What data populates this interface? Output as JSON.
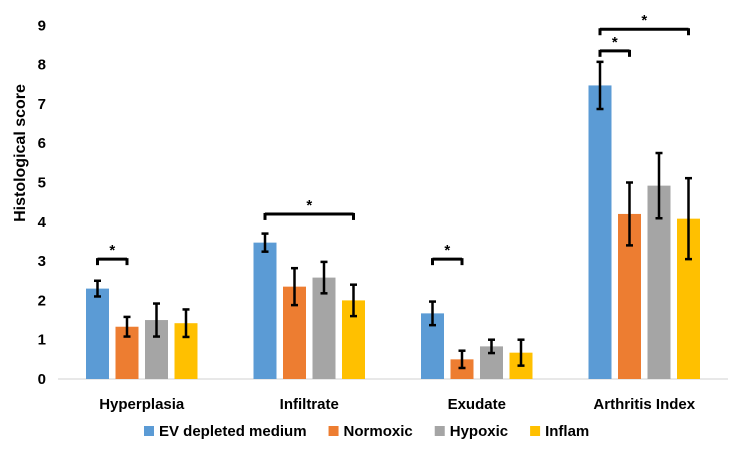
{
  "chart_data": {
    "type": "bar",
    "title": "",
    "xlabel": "",
    "ylabel": "Histological score",
    "ylim": [
      0,
      9
    ],
    "yticks": [
      0,
      1,
      2,
      3,
      4,
      5,
      6,
      7,
      8,
      9
    ],
    "grid": false,
    "legend_position": "bottom",
    "categories": [
      "Hyperplasia",
      "Infiltrate",
      "Exudate",
      "Arthritis Index"
    ],
    "series": [
      {
        "name": "EV depleted medium",
        "color": "#5B9BD5",
        "values": [
          2.3,
          3.47,
          1.67,
          7.47
        ],
        "errors": [
          0.2,
          0.23,
          0.3,
          0.6
        ]
      },
      {
        "name": "Normoxic",
        "color": "#ED7D31",
        "values": [
          1.33,
          2.35,
          0.5,
          4.2
        ],
        "errors": [
          0.25,
          0.47,
          0.22,
          0.8
        ]
      },
      {
        "name": "Hypoxic",
        "color": "#A5A5A5",
        "values": [
          1.5,
          2.58,
          0.83,
          4.92
        ],
        "errors": [
          0.42,
          0.4,
          0.17,
          0.83
        ]
      },
      {
        "name": "Inflam",
        "color": "#FFC000",
        "values": [
          1.42,
          2.0,
          0.67,
          4.08
        ],
        "errors": [
          0.35,
          0.4,
          0.33,
          1.03
        ]
      }
    ],
    "significance": [
      {
        "category": 0,
        "from_series": 0,
        "to_series": 1,
        "y": 3.05,
        "label": "*"
      },
      {
        "category": 1,
        "from_series": 0,
        "to_series": 3,
        "y": 4.2,
        "label": "*"
      },
      {
        "category": 2,
        "from_series": 0,
        "to_series": 1,
        "y": 3.05,
        "label": "*"
      },
      {
        "category": 3,
        "from_series": 0,
        "to_series": 1,
        "y": 8.35,
        "label": "*"
      },
      {
        "category": 3,
        "from_series": 0,
        "to_series": 3,
        "y": 8.9,
        "label": "*"
      }
    ]
  }
}
